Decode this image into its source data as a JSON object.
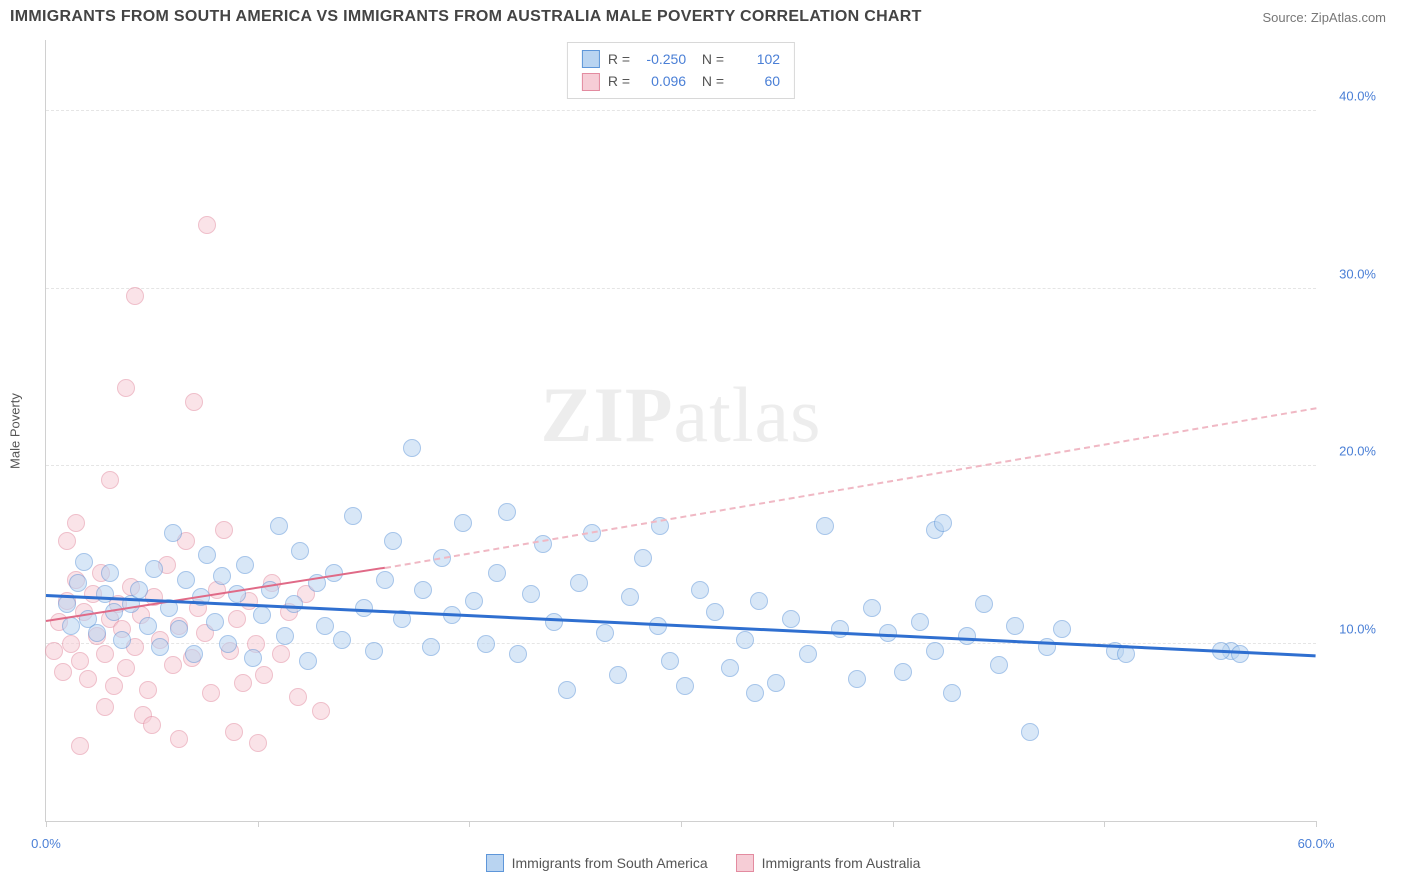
{
  "title": "IMMIGRANTS FROM SOUTH AMERICA VS IMMIGRANTS FROM AUSTRALIA MALE POVERTY CORRELATION CHART",
  "source_label": "Source: ZipAtlas.com",
  "watermark": "ZIPatlas",
  "y_axis_title": "Male Poverty",
  "chart": {
    "type": "scatter",
    "xlim": [
      0,
      60
    ],
    "ylim": [
      0,
      44
    ],
    "y_ticks": [
      10,
      20,
      30,
      40
    ],
    "y_tick_labels": [
      "10.0%",
      "20.0%",
      "30.0%",
      "40.0%"
    ],
    "x_ticks": [
      0,
      10,
      20,
      30,
      40,
      50,
      60
    ],
    "x_min_label": "0.0%",
    "x_max_label": "60.0%",
    "grid_color": "#e5e5e5",
    "axis_color": "#d0d0d0",
    "background": "#ffffff",
    "marker_radius": 9,
    "marker_stroke_width": 1.5
  },
  "series": [
    {
      "key": "south_america",
      "label": "Immigrants from South America",
      "fill": "#b9d4f1",
      "stroke": "#5e96d9",
      "fill_opacity": 0.55,
      "R": "-0.250",
      "N": "102",
      "trend": {
        "x1": 0,
        "y1": 12.6,
        "x2": 60,
        "y2": 9.2,
        "color": "#2f6fd0",
        "width": 3,
        "style": "solid"
      },
      "points": [
        [
          1,
          12.2
        ],
        [
          1.2,
          11.0
        ],
        [
          1.5,
          13.4
        ],
        [
          1.8,
          14.6
        ],
        [
          2,
          11.4
        ],
        [
          2.4,
          10.6
        ],
        [
          2.8,
          12.8
        ],
        [
          3,
          14.0
        ],
        [
          3.2,
          11.8
        ],
        [
          3.6,
          10.2
        ],
        [
          4,
          12.2
        ],
        [
          4.4,
          13.0
        ],
        [
          4.8,
          11.0
        ],
        [
          5.1,
          14.2
        ],
        [
          5.4,
          9.8
        ],
        [
          5.8,
          12.0
        ],
        [
          6,
          16.2
        ],
        [
          6.3,
          10.8
        ],
        [
          6.6,
          13.6
        ],
        [
          7,
          9.4
        ],
        [
          7.3,
          12.6
        ],
        [
          7.6,
          15.0
        ],
        [
          8,
          11.2
        ],
        [
          8.3,
          13.8
        ],
        [
          8.6,
          10.0
        ],
        [
          9,
          12.8
        ],
        [
          9.4,
          14.4
        ],
        [
          9.8,
          9.2
        ],
        [
          10.2,
          11.6
        ],
        [
          10.6,
          13.0
        ],
        [
          11,
          16.6
        ],
        [
          11.3,
          10.4
        ],
        [
          11.7,
          12.2
        ],
        [
          12,
          15.2
        ],
        [
          12.4,
          9.0
        ],
        [
          12.8,
          13.4
        ],
        [
          13.2,
          11.0
        ],
        [
          13.6,
          14.0
        ],
        [
          14,
          10.2
        ],
        [
          14.5,
          17.2
        ],
        [
          15,
          12.0
        ],
        [
          15.5,
          9.6
        ],
        [
          16,
          13.6
        ],
        [
          16.4,
          15.8
        ],
        [
          16.8,
          11.4
        ],
        [
          17.3,
          21.0
        ],
        [
          17.8,
          13.0
        ],
        [
          18.2,
          9.8
        ],
        [
          18.7,
          14.8
        ],
        [
          19.2,
          11.6
        ],
        [
          19.7,
          16.8
        ],
        [
          20.2,
          12.4
        ],
        [
          20.8,
          10.0
        ],
        [
          21.3,
          14.0
        ],
        [
          21.8,
          17.4
        ],
        [
          22.3,
          9.4
        ],
        [
          22.9,
          12.8
        ],
        [
          23.5,
          15.6
        ],
        [
          24,
          11.2
        ],
        [
          24.6,
          7.4
        ],
        [
          25.2,
          13.4
        ],
        [
          25.8,
          16.2
        ],
        [
          26.4,
          10.6
        ],
        [
          27,
          8.2
        ],
        [
          27.6,
          12.6
        ],
        [
          28.2,
          14.8
        ],
        [
          28.9,
          11.0
        ],
        [
          29.5,
          9.0
        ],
        [
          30.2,
          7.6
        ],
        [
          30.9,
          13.0
        ],
        [
          31.6,
          11.8
        ],
        [
          32.3,
          8.6
        ],
        [
          33,
          10.2
        ],
        [
          33.7,
          12.4
        ],
        [
          34.5,
          7.8
        ],
        [
          35.2,
          11.4
        ],
        [
          36,
          9.4
        ],
        [
          36.8,
          16.6
        ],
        [
          37.5,
          10.8
        ],
        [
          38.3,
          8.0
        ],
        [
          39,
          12.0
        ],
        [
          39.8,
          10.6
        ],
        [
          40.5,
          8.4
        ],
        [
          41.3,
          11.2
        ],
        [
          42,
          9.6
        ],
        [
          42.8,
          7.2
        ],
        [
          43.5,
          10.4
        ],
        [
          44.3,
          12.2
        ],
        [
          45,
          8.8
        ],
        [
          45.8,
          11.0
        ],
        [
          46.5,
          5.0
        ],
        [
          47.3,
          9.8
        ],
        [
          48,
          10.8
        ],
        [
          42.0,
          16.4
        ],
        [
          42.4,
          16.8
        ],
        [
          50.5,
          9.6
        ],
        [
          51,
          9.4
        ],
        [
          56.0,
          9.6
        ],
        [
          56.4,
          9.4
        ],
        [
          55.5,
          9.6
        ],
        [
          33.5,
          7.2
        ],
        [
          29.0,
          16.6
        ]
      ]
    },
    {
      "key": "australia",
      "label": "Immigrants from Australia",
      "fill": "#f6cdd6",
      "stroke": "#e38ba0",
      "fill_opacity": 0.55,
      "R": "0.096",
      "N": "60",
      "trend_solid": {
        "x1": 0,
        "y1": 11.2,
        "x2": 16,
        "y2": 14.2,
        "color": "#e06a87",
        "width": 2.5,
        "style": "solid"
      },
      "trend_dash": {
        "x1": 16,
        "y1": 14.2,
        "x2": 60,
        "y2": 23.2,
        "color": "#f0b8c4",
        "width": 2,
        "style": "dash"
      },
      "points": [
        [
          0.4,
          9.6
        ],
        [
          0.6,
          11.2
        ],
        [
          0.8,
          8.4
        ],
        [
          1.0,
          12.4
        ],
        [
          1.2,
          10.0
        ],
        [
          1.4,
          13.6
        ],
        [
          1.6,
          9.0
        ],
        [
          1.8,
          11.8
        ],
        [
          2.0,
          8.0
        ],
        [
          2.2,
          12.8
        ],
        [
          2.4,
          10.4
        ],
        [
          2.6,
          14.0
        ],
        [
          2.8,
          9.4
        ],
        [
          3.0,
          11.4
        ],
        [
          3.2,
          7.6
        ],
        [
          3.4,
          12.2
        ],
        [
          3.6,
          10.8
        ],
        [
          3.8,
          8.6
        ],
        [
          4.0,
          13.2
        ],
        [
          4.2,
          9.8
        ],
        [
          4.5,
          11.6
        ],
        [
          4.8,
          7.4
        ],
        [
          5.1,
          12.6
        ],
        [
          5.4,
          10.2
        ],
        [
          5.7,
          14.4
        ],
        [
          6.0,
          8.8
        ],
        [
          6.3,
          11.0
        ],
        [
          6.6,
          15.8
        ],
        [
          6.9,
          9.2
        ],
        [
          7.2,
          12.0
        ],
        [
          7.5,
          10.6
        ],
        [
          7.8,
          7.2
        ],
        [
          8.1,
          13.0
        ],
        [
          8.4,
          16.4
        ],
        [
          8.7,
          9.6
        ],
        [
          9.0,
          11.4
        ],
        [
          9.3,
          7.8
        ],
        [
          9.6,
          12.4
        ],
        [
          9.9,
          10.0
        ],
        [
          10.3,
          8.2
        ],
        [
          10.7,
          13.4
        ],
        [
          11.1,
          9.4
        ],
        [
          11.5,
          11.8
        ],
        [
          11.9,
          7.0
        ],
        [
          12.3,
          12.8
        ],
        [
          13.0,
          6.2
        ],
        [
          3.0,
          19.2
        ],
        [
          3.8,
          24.4
        ],
        [
          4.2,
          29.6
        ],
        [
          7.6,
          33.6
        ],
        [
          7.0,
          23.6
        ],
        [
          1.0,
          15.8
        ],
        [
          1.4,
          16.8
        ],
        [
          2.8,
          6.4
        ],
        [
          4.6,
          6.0
        ],
        [
          5.0,
          5.4
        ],
        [
          6.3,
          4.6
        ],
        [
          8.9,
          5.0
        ],
        [
          10.0,
          4.4
        ],
        [
          1.6,
          4.2
        ]
      ]
    }
  ],
  "legend_bottom": [
    {
      "label": "Immigrants from South America",
      "fill": "#b9d4f1",
      "stroke": "#5e96d9"
    },
    {
      "label": "Immigrants from Australia",
      "fill": "#f6cdd6",
      "stroke": "#e38ba0"
    }
  ]
}
